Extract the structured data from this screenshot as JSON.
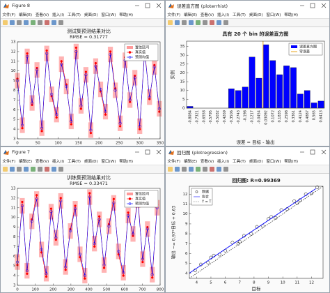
{
  "windows": [
    {
      "title": "Figure 8",
      "menu": [
        "文件(F)",
        "编辑(E)",
        "查看(V)",
        "插入(I)",
        "工具(T)",
        "桌面(D)",
        "窗口(W)",
        "帮助(H)"
      ],
      "chart_data": {
        "type": "line",
        "title": "测试集预测结果对比",
        "subtitle": "RMSE = 0.31777",
        "x": [
          0,
          12,
          24,
          36,
          48,
          60,
          72,
          84,
          96,
          108,
          120,
          132,
          144,
          156,
          168,
          180,
          192,
          204,
          216,
          228,
          240,
          252,
          264,
          276,
          288,
          300,
          312,
          324,
          336,
          348
        ],
        "series": [
          {
            "name": "置信区间",
            "color": "#ff9a9a",
            "lower": [
              8.2,
              3.6,
              10.7,
              5.9,
              9.3,
              3.3,
              11.0,
              6.8,
              4.7,
              9.9,
              7.6,
              4.0,
              11.2,
              5.6,
              8.8,
              3.1,
              9.7,
              7.3,
              5.0,
              10.9,
              7.2,
              3.8,
              10.3,
              6.2,
              8.5,
              3.5,
              11.1,
              6.5,
              9.6,
              5.3
            ],
            "upper": [
              9.8,
              5.2,
              12.3,
              7.5,
              10.9,
              4.9,
              12.6,
              8.4,
              6.3,
              11.5,
              9.2,
              5.6,
              12.8,
              7.2,
              10.4,
              4.7,
              11.3,
              8.9,
              6.6,
              12.5,
              8.8,
              5.4,
              11.9,
              7.8,
              10.1,
              5.1,
              12.7,
              8.1,
              11.2,
              6.9
            ]
          },
          {
            "name": "真实值",
            "color": "#ff0000",
            "marker": "dot",
            "values": [
              9.2,
              4.1,
              11.8,
              6.5,
              10.3,
              3.8,
              12.1,
              7.4,
              5.2,
              11.0,
              8.6,
              4.5,
              12.4,
              6.1,
              9.9,
              3.6,
              10.8,
              7.9,
              5.5,
              12.0,
              8.2,
              4.3,
              11.4,
              6.8,
              9.5,
              4.0,
              12.2,
              7.1,
              10.6,
              5.8
            ]
          },
          {
            "name": "预测均值",
            "color": "#0000ff",
            "marker": "circle",
            "values": [
              9.0,
              4.4,
              11.5,
              6.7,
              10.1,
              4.1,
              11.8,
              7.6,
              5.5,
              10.7,
              8.4,
              4.8,
              12.0,
              6.4,
              9.6,
              3.9,
              10.5,
              8.1,
              5.8,
              11.7,
              8.0,
              4.6,
              11.1,
              7.0,
              9.3,
              4.3,
              11.9,
              7.3,
              10.4,
              6.1
            ]
          }
        ],
        "xlim": [
          0,
          350
        ],
        "xticks": [
          0,
          50,
          100,
          150,
          200,
          250,
          300,
          350
        ],
        "ylim": [
          3,
          13
        ],
        "yticks": [
          3,
          4,
          5,
          6,
          7,
          8,
          9,
          10,
          11,
          12,
          13
        ],
        "legend": "upper right"
      }
    },
    {
      "title": "误差直方图 (ploterrhist)",
      "menu": [
        "文件(F)",
        "编辑(E)",
        "查看(V)",
        "插入(I)",
        "工具(T)",
        "桌面(D)",
        "窗口(W)",
        "帮助(H)"
      ],
      "chart_data": {
        "type": "bar",
        "title": "具有 20 个 bin 的误差直方图",
        "xlabel": "误差 = 目标 - 输出",
        "ylabel": "实例",
        "categories": [
          -0.8084,
          -0.7321,
          -0.6558,
          -0.5795,
          -0.5032,
          -0.4269,
          -0.3506,
          -0.2743,
          -0.198,
          -0.1217,
          -0.0454,
          0.03092,
          0.1072,
          0.1835,
          0.2598,
          0.3361,
          0.4124,
          0.4887,
          0.565,
          0.6413
        ],
        "series": [
          {
            "name": "误差直方图",
            "color": "#0000ff",
            "values": [
              1,
              0,
              0,
              0,
              0,
              0,
              11,
              10,
              12,
              29,
              17,
              36,
              27,
              19,
              24,
              23,
              8,
              10,
              3,
              4
            ]
          }
        ],
        "reference_line": {
          "name": "零误差",
          "value": 0,
          "color": "#e8a317"
        },
        "ylim": [
          0,
          38
        ],
        "yticks": [
          0,
          5,
          10,
          15,
          20,
          25,
          30,
          35
        ],
        "legend": "upper right"
      }
    },
    {
      "title": "Figure 7",
      "menu": [
        "文件(F)",
        "编辑(E)",
        "查看(V)",
        "插入(I)",
        "工具(T)",
        "桌面(D)",
        "窗口(W)",
        "帮助(H)"
      ],
      "chart_data": {
        "type": "line",
        "title": "训练集预测结果对比",
        "subtitle": "RMSE = 0.33471",
        "x": [
          0,
          27,
          54,
          81,
          108,
          135,
          162,
          189,
          216,
          243,
          270,
          297,
          324,
          351,
          378,
          405,
          432,
          459,
          486,
          513,
          540,
          567,
          594,
          621,
          648,
          675,
          702,
          729,
          756,
          783
        ],
        "series": [
          {
            "name": "置信区间",
            "color": "#ff9a9a",
            "lower": [
              4.6,
              10.4,
              3.7,
              8.8,
              11.1,
              5.9,
              3.4,
              9.8,
              7.1,
              10.9,
              4.1,
              7.8,
              10.1,
              5.4,
              3.2,
              11.3,
              6.5,
              9.0,
              4.3,
              8.3,
              10.7,
              5.7,
              3.5,
              9.4,
              7.5,
              11.0,
              4.9,
              8.0,
              3.3,
              10.2
            ],
            "upper": [
              6.2,
              12.0,
              5.3,
              10.4,
              12.7,
              7.5,
              5.0,
              11.4,
              8.7,
              12.5,
              5.7,
              9.4,
              11.7,
              7.0,
              4.8,
              12.9,
              8.1,
              10.6,
              5.9,
              9.9,
              12.3,
              7.3,
              5.1,
              11.0,
              9.1,
              12.6,
              6.5,
              9.6,
              4.9,
              11.8
            ]
          },
          {
            "name": "真实值",
            "color": "#ff0000",
            "marker": "dot",
            "values": [
              5.1,
              11.6,
              4.2,
              9.8,
              12.3,
              6.4,
              3.9,
              10.9,
              7.7,
              12.0,
              4.6,
              8.8,
              11.2,
              5.9,
              3.7,
              12.5,
              7.0,
              10.1,
              4.8,
              9.3,
              11.9,
              6.2,
              4.0,
              10.5,
              8.1,
              12.2,
              5.4,
              9.0,
              3.8,
              11.3
            ]
          },
          {
            "name": "预测均值",
            "color": "#0000ff",
            "marker": "circle",
            "values": [
              5.4,
              11.2,
              4.5,
              9.6,
              11.9,
              6.7,
              4.2,
              10.6,
              7.9,
              11.7,
              4.9,
              8.6,
              10.9,
              6.2,
              4.0,
              12.1,
              7.3,
              9.8,
              5.1,
              9.1,
              11.5,
              6.5,
              4.3,
              10.2,
              8.3,
              11.8,
              5.7,
              8.8,
              4.1,
              11.0
            ]
          }
        ],
        "xlim": [
          0,
          800
        ],
        "xticks": [
          0,
          100,
          200,
          300,
          400,
          500,
          600,
          700,
          800
        ],
        "ylim": [
          3,
          13
        ],
        "yticks": [
          3,
          4,
          5,
          6,
          7,
          8,
          9,
          10,
          11,
          12,
          13
        ],
        "legend": "upper right"
      }
    },
    {
      "title": "回归图 (plotregression)",
      "menu": [
        "文件(F)",
        "编辑(E)",
        "查看(V)",
        "插入(I)",
        "工具(T)",
        "桌面(D)",
        "窗口(W)",
        "帮助(H)"
      ],
      "chart_data": {
        "type": "scatter",
        "title": "回归图: R=0.99369",
        "xlabel": "目标",
        "ylabel": "输出 ~= 0.97*目标 + 0.63",
        "series": [
          {
            "name": "数据",
            "color": "#000000",
            "marker": "circle",
            "x": [
              3.9,
              4.3,
              4.8,
              5.2,
              5.6,
              6.0,
              6.5,
              6.9,
              7.3,
              7.8,
              8.2,
              8.6,
              9.0,
              9.5,
              9.9,
              10.3,
              10.8,
              11.2,
              11.6,
              12.0,
              12.4,
              5.0,
              7.0,
              9.2,
              11.0
            ],
            "y": [
              4.3,
              4.9,
              5.1,
              5.8,
              5.9,
              6.3,
              7.1,
              7.0,
              7.8,
              8.0,
              8.7,
              8.8,
              9.5,
              9.6,
              10.4,
              10.5,
              11.3,
              11.4,
              12.0,
              12.1,
              12.7,
              5.6,
              7.2,
              9.7,
              11.1
            ]
          },
          {
            "name": "拟合",
            "color": "#0000ff",
            "line": "solid",
            "x": [
              3.5,
              12.3
            ],
            "y": [
              4.03,
              12.56
            ]
          },
          {
            "name": "Y = T",
            "color": "#444444",
            "line": "dotted",
            "x": [
              3.5,
              12.8
            ],
            "y": [
              3.5,
              12.8
            ]
          }
        ],
        "xlim": [
          3.5,
          12.8
        ],
        "xticks": [
          4,
          5,
          6,
          7,
          8,
          9,
          10,
          11,
          12
        ],
        "ylim": [
          3.5,
          12.8
        ],
        "yticks": [
          4,
          5,
          6,
          7,
          8,
          9,
          10,
          11,
          12
        ],
        "legend": "upper left"
      }
    }
  ]
}
